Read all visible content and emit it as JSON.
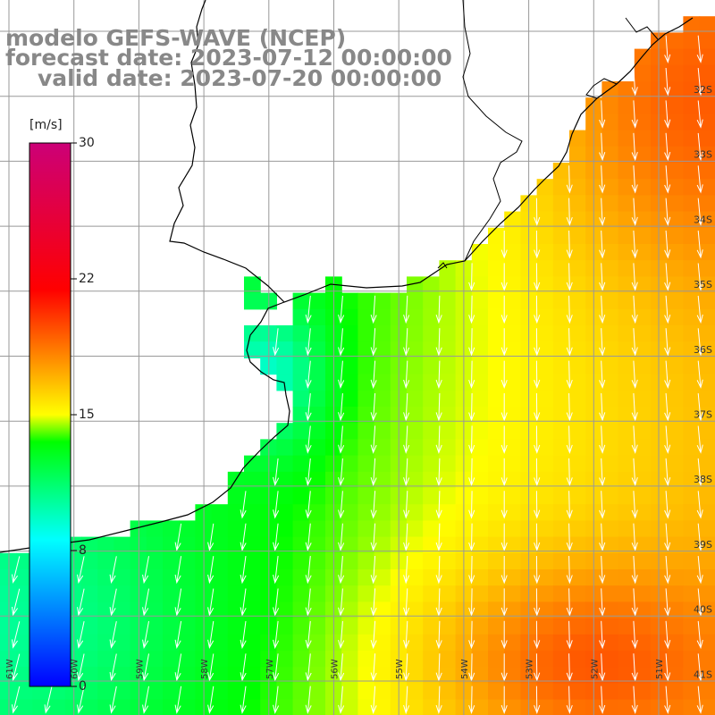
{
  "title": {
    "line1": "modelo GEFS-WAVE (NCEP)",
    "line2": "forecast date: 2023-07-12 00:00:00",
    "line3": "valid date: 2023-07-20 00:00:00"
  },
  "colorbar": {
    "unit": "[m/s]",
    "ticks": [
      "30",
      "22",
      "15",
      "8",
      "0"
    ],
    "colors": [
      "#0000ff",
      "#00ffff",
      "#00ff00",
      "#ffff00",
      "#ff0000",
      "#cc0077"
    ]
  },
  "map": {
    "lat_labels": [
      "32S",
      "33S",
      "34S",
      "35S",
      "36S",
      "37S",
      "38S",
      "39S",
      "40S",
      "41S"
    ],
    "lon_labels": [
      "61W",
      "60W",
      "59W",
      "58W",
      "57W",
      "56W",
      "55W",
      "54W",
      "53W",
      "52W",
      "51W"
    ],
    "grid_color": "#999999",
    "coast_color": "#000000",
    "arrow_color": "#ffffff"
  }
}
